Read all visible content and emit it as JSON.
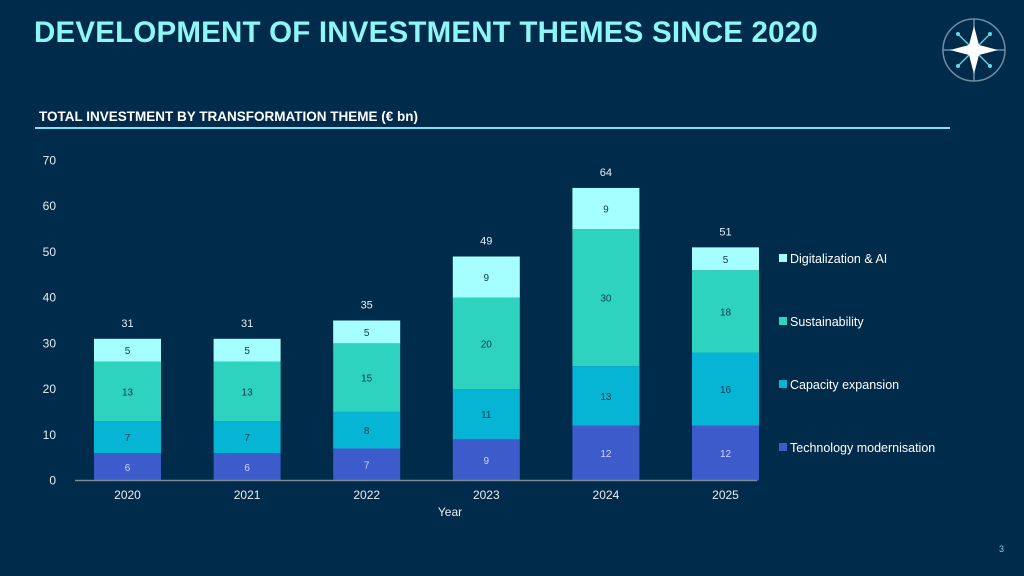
{
  "page": {
    "title": "DEVELOPMENT OF INVESTMENT THEMES SINCE 2020",
    "subtitle": "TOTAL INVESTMENT BY TRANSFORMATION THEME (€ bn)",
    "page_number": "3",
    "logo_icon": "compass-star-icon"
  },
  "colors": {
    "background": "#002B4A",
    "title": "#8EF6F6",
    "rule": "#7FE3EC"
  },
  "chart_data": {
    "type": "bar",
    "stacked": true,
    "title": "TOTAL INVESTMENT BY TRANSFORMATION THEME (€ bn)",
    "xlabel": "Year",
    "ylabel": "",
    "ylim": [
      0,
      70
    ],
    "yticks": [
      0,
      10,
      20,
      30,
      40,
      50,
      60,
      70
    ],
    "grid": false,
    "legend_position": "right",
    "categories": [
      "2020",
      "2021",
      "2022",
      "2023",
      "2024",
      "2025"
    ],
    "series": [
      {
        "name": "Technology modernisation",
        "color": "#3E5BCC",
        "label_color": "#C9D6FF",
        "values": [
          6,
          6,
          7,
          9,
          12,
          12
        ]
      },
      {
        "name": "Capacity expansion",
        "color": "#06B5D4",
        "label_color": "#0B3A4E",
        "values": [
          7,
          7,
          8,
          11,
          13,
          16
        ]
      },
      {
        "name": "Sustainability",
        "color": "#2ED3C0",
        "label_color": "#0B3A4E",
        "values": [
          13,
          13,
          15,
          20,
          30,
          18
        ]
      },
      {
        "name": "Digitalization & AI",
        "color": "#A6FFFF",
        "label_color": "#0B3A4E",
        "values": [
          5,
          5,
          5,
          9,
          9,
          5
        ]
      }
    ],
    "totals": [
      31,
      31,
      35,
      49,
      64,
      51
    ],
    "legend_order": [
      "Digitalization & AI",
      "Sustainability",
      "Capacity expansion",
      "Technology modernisation"
    ]
  }
}
